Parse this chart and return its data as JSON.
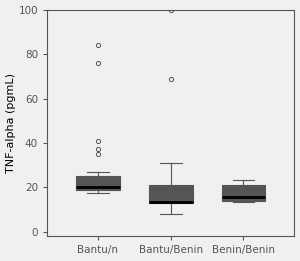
{
  "groups": [
    "Bantu/n",
    "Bantu/Benin",
    "Benin/Benin"
  ],
  "boxes": [
    {
      "q1": 19.0,
      "median": 20.0,
      "q3": 25.0,
      "whislo": 17.5,
      "whishi": 27.0,
      "fliers": [
        35.0,
        37.5,
        41.0,
        76.0,
        84.0
      ]
    },
    {
      "q1": 13.0,
      "median": 13.5,
      "q3": 21.0,
      "whislo": 8.0,
      "whishi": 31.0,
      "fliers": [
        69.0,
        100.0
      ]
    },
    {
      "q1": 14.0,
      "median": 15.5,
      "q3": 21.0,
      "whislo": 13.5,
      "whishi": 23.5,
      "fliers": []
    }
  ],
  "ylabel": "TNF-alpha (pgmL)",
  "ylim": [
    -2,
    100
  ],
  "yticks": [
    0,
    20,
    40,
    60,
    80,
    100
  ],
  "xlim": [
    0.3,
    3.7
  ],
  "positions": [
    1,
    2,
    3
  ],
  "box_width": 0.6,
  "background_color": "#f0f0f0",
  "box_facecolor": "#f0f0f0",
  "line_color": "#555555",
  "median_color": "#000000",
  "flier_color": "#f0f0f0",
  "flier_edge_color": "#555555",
  "ylabel_fontsize": 8,
  "tick_fontsize": 7.5,
  "figsize": [
    3.0,
    2.61
  ],
  "dpi": 100
}
